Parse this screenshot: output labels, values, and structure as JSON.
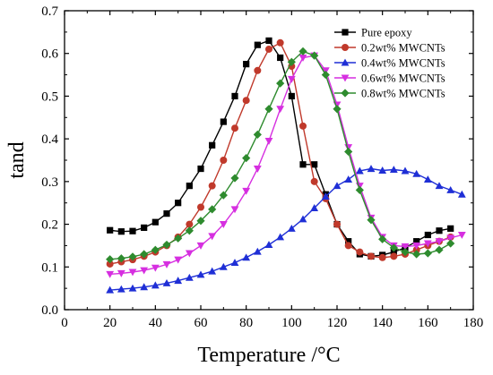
{
  "chart_data": {
    "type": "line",
    "title": "",
    "xlabel": "Temperature /°C",
    "ylabel": "tand",
    "xlim": [
      0,
      180
    ],
    "ylim": [
      0.0,
      0.7
    ],
    "xticks": [
      "0",
      "20",
      "40",
      "60",
      "80",
      "100",
      "120",
      "140",
      "160",
      "180"
    ],
    "yticks": [
      "0.0",
      "0.1",
      "0.2",
      "0.3",
      "0.4",
      "0.5",
      "0.6",
      "0.7"
    ],
    "grid": false,
    "legend_position": "top-right",
    "series": [
      {
        "name": "Pure epoxy",
        "color": "#000000",
        "marker": "square",
        "x": [
          20,
          25,
          30,
          35,
          40,
          45,
          50,
          55,
          60,
          65,
          70,
          75,
          80,
          85,
          90,
          95,
          100,
          105,
          110,
          115,
          120,
          125,
          130,
          135,
          140,
          145,
          150,
          155,
          160,
          165,
          170
        ],
        "y": [
          0.186,
          0.183,
          0.184,
          0.192,
          0.205,
          0.225,
          0.25,
          0.29,
          0.33,
          0.385,
          0.44,
          0.5,
          0.575,
          0.62,
          0.63,
          0.59,
          0.5,
          0.34,
          0.34,
          0.27,
          0.2,
          0.16,
          0.13,
          0.125,
          0.128,
          0.135,
          0.145,
          0.16,
          0.175,
          0.185,
          0.19
        ]
      },
      {
        "name": "0.2wt%  MWCNTs",
        "color": "#c0392b",
        "marker": "circle",
        "x": [
          20,
          25,
          30,
          35,
          40,
          45,
          50,
          55,
          60,
          65,
          70,
          75,
          80,
          85,
          90,
          95,
          100,
          105,
          110,
          115,
          120,
          125,
          130,
          135,
          140,
          145,
          150,
          155,
          160,
          165,
          170
        ],
        "y": [
          0.107,
          0.112,
          0.117,
          0.125,
          0.135,
          0.15,
          0.17,
          0.2,
          0.24,
          0.29,
          0.35,
          0.425,
          0.49,
          0.56,
          0.61,
          0.625,
          0.57,
          0.43,
          0.3,
          0.26,
          0.2,
          0.15,
          0.135,
          0.125,
          0.122,
          0.125,
          0.13,
          0.14,
          0.15,
          0.16,
          0.17
        ]
      },
      {
        "name": "0.4wt%  MWCNTs",
        "color": "#1f2fd6",
        "marker": "triangle-up",
        "x": [
          20,
          25,
          30,
          35,
          40,
          45,
          50,
          55,
          60,
          65,
          70,
          75,
          80,
          85,
          90,
          95,
          100,
          105,
          110,
          115,
          120,
          125,
          130,
          135,
          140,
          145,
          150,
          155,
          160,
          165,
          170,
          175
        ],
        "y": [
          0.046,
          0.048,
          0.05,
          0.053,
          0.057,
          0.062,
          0.068,
          0.075,
          0.082,
          0.09,
          0.1,
          0.11,
          0.122,
          0.136,
          0.152,
          0.17,
          0.19,
          0.212,
          0.238,
          0.265,
          0.29,
          0.305,
          0.325,
          0.33,
          0.326,
          0.328,
          0.325,
          0.318,
          0.305,
          0.29,
          0.28,
          0.27
        ]
      },
      {
        "name": "0.6wt%  MWCNTs",
        "color": "#d62fe0",
        "marker": "triangle-down",
        "x": [
          20,
          25,
          30,
          35,
          40,
          45,
          50,
          55,
          60,
          65,
          70,
          75,
          80,
          85,
          90,
          95,
          100,
          105,
          110,
          115,
          120,
          125,
          130,
          135,
          140,
          145,
          150,
          155,
          160,
          165,
          170,
          175
        ],
        "y": [
          0.083,
          0.085,
          0.088,
          0.092,
          0.098,
          0.106,
          0.117,
          0.132,
          0.15,
          0.172,
          0.2,
          0.235,
          0.278,
          0.33,
          0.395,
          0.47,
          0.54,
          0.59,
          0.595,
          0.56,
          0.48,
          0.38,
          0.29,
          0.215,
          0.17,
          0.15,
          0.148,
          0.15,
          0.155,
          0.16,
          0.168,
          0.175
        ]
      },
      {
        "name": "0.8wt%  MWCNTs",
        "color": "#2e8b2e",
        "marker": "diamond",
        "x": [
          20,
          25,
          30,
          35,
          40,
          45,
          50,
          55,
          60,
          65,
          70,
          75,
          80,
          85,
          90,
          95,
          100,
          105,
          110,
          115,
          120,
          125,
          130,
          135,
          140,
          145,
          150,
          155,
          160,
          165,
          170
        ],
        "y": [
          0.118,
          0.12,
          0.124,
          0.13,
          0.14,
          0.152,
          0.167,
          0.185,
          0.208,
          0.235,
          0.268,
          0.308,
          0.355,
          0.41,
          0.47,
          0.53,
          0.58,
          0.605,
          0.595,
          0.55,
          0.47,
          0.37,
          0.28,
          0.21,
          0.165,
          0.145,
          0.135,
          0.13,
          0.132,
          0.14,
          0.155
        ]
      }
    ]
  }
}
